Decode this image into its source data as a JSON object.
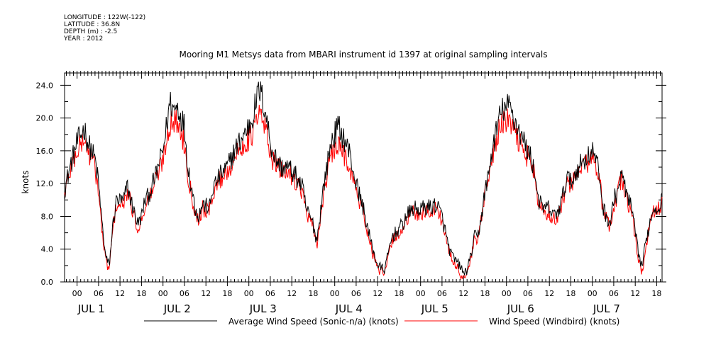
{
  "meta": {
    "longitude": "LONGITUDE : 122W(-122)",
    "latitude": "LATITUDE : 36.8N",
    "depth": "DEPTH (m) : -2.5",
    "year": "YEAR : 2012"
  },
  "chart_data": {
    "type": "line",
    "title": "Mooring M1 Metsys data from MBARI instrument id 1397 at original sampling intervals",
    "ylabel": "knots",
    "xlabel": "",
    "ylim": [
      0,
      25.5
    ],
    "xlim_hours": [
      -3.5,
      163.5
    ],
    "x_unit": "hours from 00:00 JUL 1 2012",
    "y_ticks": [
      "0.0",
      "4.0",
      "8.0",
      "12.0",
      "16.0",
      "20.0",
      "24.0"
    ],
    "x_ticks": [
      "00",
      "06",
      "12",
      "18",
      "00",
      "06",
      "12",
      "18",
      "00",
      "06",
      "12",
      "18",
      "00",
      "06",
      "12",
      "18",
      "00",
      "06",
      "12",
      "18",
      "00",
      "06",
      "12",
      "18",
      "00",
      "06",
      "12",
      "18"
    ],
    "day_labels": [
      "JUL  1",
      "JUL  2",
      "JUL  3",
      "JUL  4",
      "JUL  5",
      "JUL  6",
      "JUL  7"
    ],
    "grid": false,
    "legend_position": "bottom",
    "series": [
      {
        "name": "Average Wind Speed (Sonic-n/a) (knots)",
        "color": "#000000",
        "x": [
          -3.5,
          -2,
          0,
          2,
          3,
          5,
          6,
          7,
          8,
          9,
          10,
          11,
          13,
          14,
          15,
          17,
          18,
          19,
          20,
          22,
          24,
          25,
          26,
          27,
          28,
          30,
          31,
          33,
          34,
          35,
          37,
          38,
          40,
          42,
          44,
          46,
          48,
          49,
          50,
          51,
          52,
          53,
          54,
          55,
          57,
          59,
          61,
          63,
          64,
          66,
          67,
          69,
          71,
          73,
          74,
          76,
          78,
          80,
          82,
          84,
          86,
          88,
          91,
          92,
          94,
          95,
          97,
          98,
          99,
          100,
          101,
          102,
          103,
          104,
          105,
          106,
          107,
          108,
          109,
          110,
          111,
          112,
          113,
          114,
          115,
          116,
          117,
          118,
          119,
          121,
          122,
          123,
          125,
          127,
          128,
          129,
          130,
          131,
          132,
          133,
          135,
          137,
          138,
          139,
          140,
          142,
          144,
          145,
          146,
          147,
          148,
          149,
          150,
          151,
          152,
          153,
          154,
          155,
          156,
          157,
          158,
          159,
          160,
          161,
          162,
          163.5
        ],
        "y": [
          11.2,
          14.0,
          17.0,
          18.8,
          17.0,
          15.0,
          12.0,
          7.0,
          3.0,
          2.0,
          7.0,
          10.0,
          9.8,
          11.8,
          10.0,
          7.0,
          8.0,
          10.0,
          10.5,
          13.0,
          16.0,
          19.0,
          22.0,
          21.0,
          21.5,
          19.0,
          14.0,
          9.0,
          8.0,
          9.5,
          9.0,
          11.5,
          13.0,
          14.0,
          16.0,
          17.5,
          19.0,
          20.0,
          22.0,
          23.5,
          22.0,
          20.0,
          17.0,
          15.5,
          14.0,
          14.0,
          13.0,
          11.5,
          9.0,
          7.0,
          5.0,
          12.0,
          17.0,
          19.0,
          18.0,
          16.0,
          12.0,
          9.0,
          5.0,
          2.0,
          1.5,
          5.5,
          7.0,
          8.0,
          9.0,
          8.8,
          9.0,
          9.2,
          9.0,
          9.5,
          9.0,
          8.0,
          6.0,
          4.0,
          3.0,
          2.5,
          2.0,
          1.0,
          1.5,
          3.0,
          5.5,
          5.5,
          8.0,
          11.0,
          13.0,
          16.0,
          18.0,
          20.0,
          21.0,
          21.5,
          20.0,
          19.0,
          17.0,
          15.0,
          13.0,
          10.0,
          9.0,
          9.0,
          9.0,
          8.0,
          9.0,
          13.0,
          12.0,
          13.0,
          14.0,
          15.0,
          16.0,
          15.0,
          13.0,
          9.0,
          8.0,
          7.0,
          10.0,
          11.0,
          13.0,
          12.0,
          10.0,
          9.0,
          6.0,
          3.0,
          2.0,
          5.0,
          7.0,
          9.0,
          9.0,
          10.0
        ]
      },
      {
        "name": "Wind Speed (Windbird) (knots)",
        "color": "#ff0000",
        "x": [
          -3.5,
          -2,
          0,
          2,
          3,
          5,
          6,
          7,
          8,
          9,
          10,
          11,
          13,
          14,
          15,
          17,
          18,
          19,
          20,
          22,
          24,
          25,
          26,
          27,
          28,
          30,
          31,
          33,
          34,
          35,
          37,
          38,
          40,
          42,
          44,
          46,
          48,
          49,
          50,
          51,
          52,
          53,
          54,
          55,
          57,
          59,
          61,
          63,
          64,
          66,
          67,
          69,
          71,
          73,
          74,
          76,
          78,
          80,
          82,
          84,
          86,
          88,
          91,
          92,
          94,
          95,
          97,
          98,
          99,
          100,
          101,
          102,
          103,
          104,
          105,
          106,
          107,
          108,
          109,
          110,
          111,
          112,
          113,
          114,
          115,
          116,
          117,
          118,
          119,
          121,
          122,
          123,
          125,
          127,
          128,
          129,
          130,
          131,
          132,
          133,
          135,
          137,
          138,
          139,
          140,
          142,
          144,
          145,
          146,
          147,
          148,
          149,
          150,
          151,
          152,
          153,
          154,
          155,
          156,
          157,
          158,
          159,
          160,
          161,
          162,
          163.5
        ],
        "y": [
          10.8,
          13.5,
          16.0,
          17.5,
          16.0,
          14.0,
          11.0,
          6.0,
          2.5,
          1.5,
          6.5,
          9.5,
          9.2,
          11.0,
          9.5,
          6.5,
          7.5,
          9.5,
          10.0,
          12.5,
          15.0,
          17.5,
          19.5,
          19.5,
          19.5,
          17.0,
          13.0,
          8.5,
          7.5,
          9.0,
          8.5,
          11.0,
          12.5,
          13.5,
          15.0,
          16.5,
          17.5,
          18.0,
          19.5,
          20.5,
          19.5,
          18.0,
          16.0,
          14.5,
          13.5,
          13.5,
          12.5,
          11.0,
          8.5,
          6.5,
          4.5,
          11.0,
          15.5,
          16.5,
          16.0,
          14.5,
          11.0,
          8.5,
          4.5,
          1.5,
          1.0,
          5.0,
          6.5,
          7.5,
          8.5,
          8.2,
          8.5,
          8.5,
          8.5,
          9.0,
          8.5,
          7.5,
          5.5,
          3.5,
          2.5,
          2.0,
          1.0,
          0.5,
          1.0,
          2.5,
          5.0,
          5.0,
          7.5,
          10.5,
          12.5,
          15.0,
          17.0,
          18.5,
          19.5,
          19.5,
          18.5,
          17.5,
          16.0,
          14.5,
          12.5,
          9.5,
          8.5,
          8.5,
          8.5,
          7.5,
          8.5,
          12.5,
          11.5,
          12.5,
          13.5,
          14.5,
          15.0,
          14.5,
          12.5,
          8.5,
          7.5,
          6.5,
          9.5,
          10.5,
          12.5,
          11.5,
          9.5,
          8.5,
          5.5,
          2.5,
          1.0,
          4.5,
          6.5,
          8.5,
          8.5,
          9.5
        ]
      }
    ]
  }
}
